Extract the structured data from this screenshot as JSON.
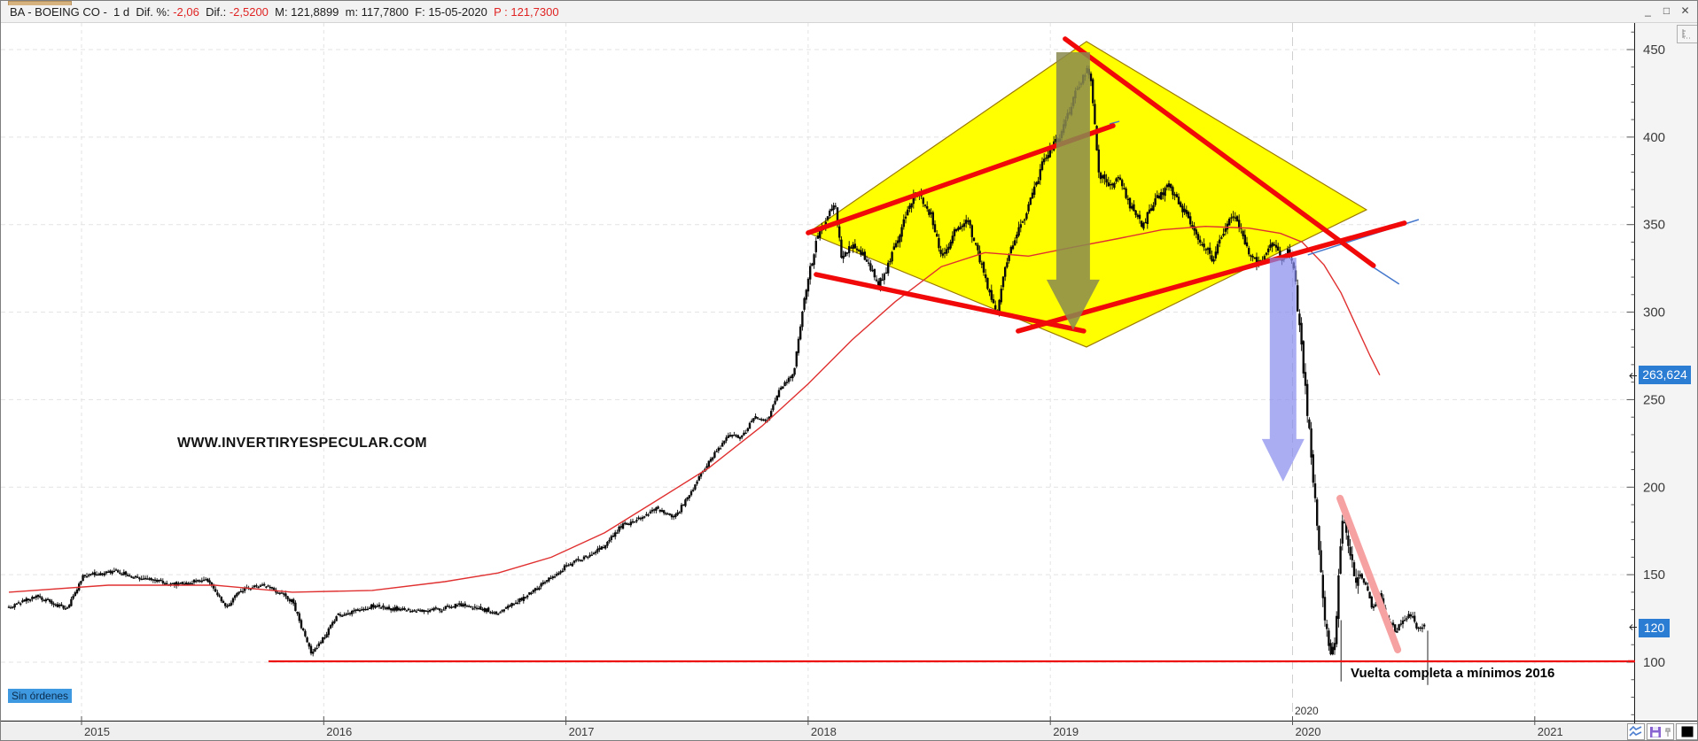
{
  "titlebar": {
    "symbol_info": "BA - BOEING CO -  1 d  Dif. %: ",
    "diff_pct": "-2,06",
    "diff_label": "  Dif.: ",
    "diff_abs": "-2,5200",
    "session_info": "  M: 121,8899  m: 117,7800  F: 15-05-2020  ",
    "last_price_label": "P : 121,7300",
    "minimize": "_",
    "maximize": "□",
    "close": "✕"
  },
  "status": {
    "orders_label": "Sin órdenes"
  },
  "watermark": "WWW.INVERTIRYESPECULAR.COM",
  "annotation_note": "Vuelta completa a mínimos 2016",
  "floating_year_label": "2020",
  "price_axis": {
    "badge_ma": "263,624",
    "badge_last": "120"
  },
  "colors": {
    "badge_blue": "#2b7cd3",
    "trend_red": "#f10808",
    "support_red": "#ee1111",
    "pink": "#f7a2a2",
    "diamond_yellow": "#ffff00",
    "diamond_border": "#9c7a00",
    "ma_red": "#e03030",
    "olive_arrow": "rgba(138,138,80,0.85)",
    "blue_arrow": "rgba(136,138,238,0.7)",
    "thin_blue": "#4477cc",
    "grid": "#e3e3e3",
    "axis_text": "#3b3b3b"
  },
  "chart_data": {
    "type": "candlestick",
    "symbol": "BA - BOEING CO",
    "timeframe": "1 d",
    "last_session": "15-05-2020",
    "y_axis": {
      "side": "right",
      "ticks": [
        100,
        150,
        200,
        250,
        300,
        350,
        400,
        450
      ],
      "minor_step": 10,
      "top_price": 465,
      "bottom_price": 67,
      "ma_marker_value": 263.624,
      "last_price_marker": 120,
      "last_close": 121.73
    },
    "x_axis": {
      "year_ticks": [
        2015,
        2016,
        2017,
        2018,
        2019,
        2020,
        2021
      ],
      "current_year_line": 2020
    },
    "price_path": [
      [
        2014.7,
        131
      ],
      [
        2014.81,
        138
      ],
      [
        2014.94,
        130
      ],
      [
        2015.01,
        150
      ],
      [
        2015.14,
        152
      ],
      [
        2015.25,
        148
      ],
      [
        2015.4,
        144
      ],
      [
        2015.51,
        148
      ],
      [
        2015.6,
        131
      ],
      [
        2015.65,
        141
      ],
      [
        2015.76,
        144
      ],
      [
        2015.87,
        135
      ],
      [
        2015.95,
        104
      ],
      [
        2016.06,
        127
      ],
      [
        2016.2,
        132
      ],
      [
        2016.31,
        130
      ],
      [
        2016.42,
        129
      ],
      [
        2016.57,
        133
      ],
      [
        2016.72,
        128
      ],
      [
        2016.86,
        140
      ],
      [
        2017.0,
        155
      ],
      [
        2017.08,
        160
      ],
      [
        2017.16,
        167
      ],
      [
        2017.23,
        178
      ],
      [
        2017.3,
        182
      ],
      [
        2017.37,
        188
      ],
      [
        2017.45,
        183
      ],
      [
        2017.52,
        198
      ],
      [
        2017.59,
        215
      ],
      [
        2017.67,
        230
      ],
      [
        2017.72,
        228
      ],
      [
        2017.78,
        240
      ],
      [
        2017.83,
        238
      ],
      [
        2017.89,
        258
      ],
      [
        2017.94,
        265
      ],
      [
        2017.97,
        295
      ],
      [
        2018.0,
        320
      ],
      [
        2018.03,
        338
      ],
      [
        2018.07,
        352
      ],
      [
        2018.11,
        362
      ],
      [
        2018.14,
        330
      ],
      [
        2018.18,
        340
      ],
      [
        2018.24,
        330
      ],
      [
        2018.29,
        315
      ],
      [
        2018.34,
        330
      ],
      [
        2018.4,
        355
      ],
      [
        2018.45,
        370
      ],
      [
        2018.51,
        355
      ],
      [
        2018.55,
        330
      ],
      [
        2018.6,
        345
      ],
      [
        2018.66,
        352
      ],
      [
        2018.71,
        330
      ],
      [
        2018.75,
        310
      ],
      [
        2018.78,
        298
      ],
      [
        2018.82,
        330
      ],
      [
        2018.88,
        350
      ],
      [
        2018.93,
        368
      ],
      [
        2018.98,
        390
      ],
      [
        2019.04,
        400
      ],
      [
        2019.09,
        420
      ],
      [
        2019.15,
        440
      ],
      [
        2019.17,
        430
      ],
      [
        2019.2,
        380
      ],
      [
        2019.24,
        370
      ],
      [
        2019.28,
        378
      ],
      [
        2019.33,
        360
      ],
      [
        2019.38,
        350
      ],
      [
        2019.44,
        365
      ],
      [
        2019.49,
        372
      ],
      [
        2019.55,
        358
      ],
      [
        2019.6,
        345
      ],
      [
        2019.64,
        338
      ],
      [
        2019.67,
        330
      ],
      [
        2019.71,
        345
      ],
      [
        2019.75,
        355
      ],
      [
        2019.78,
        350
      ],
      [
        2019.83,
        330
      ],
      [
        2019.87,
        328
      ],
      [
        2019.92,
        340
      ],
      [
        2019.96,
        330
      ],
      [
        2019.98,
        338
      ],
      [
        2020.01,
        320
      ],
      [
        2020.04,
        275
      ],
      [
        2020.07,
        230
      ],
      [
        2020.1,
        180
      ],
      [
        2020.13,
        130
      ],
      [
        2020.16,
        100
      ],
      [
        2020.18,
        120
      ],
      [
        2020.19,
        150
      ],
      [
        2020.21,
        185
      ],
      [
        2020.24,
        160
      ],
      [
        2020.26,
        145
      ],
      [
        2020.28,
        152
      ],
      [
        2020.31,
        140
      ],
      [
        2020.33,
        130
      ],
      [
        2020.36,
        138
      ],
      [
        2020.38,
        128
      ],
      [
        2020.4,
        122
      ],
      [
        2020.43,
        118
      ],
      [
        2020.46,
        125
      ],
      [
        2020.48,
        128
      ],
      [
        2020.51,
        121
      ],
      [
        2020.545,
        121
      ]
    ],
    "ma_path": [
      [
        2014.7,
        140
      ],
      [
        2015.11,
        144
      ],
      [
        2015.55,
        144
      ],
      [
        2015.87,
        140
      ],
      [
        2016.2,
        141
      ],
      [
        2016.5,
        146
      ],
      [
        2016.72,
        151
      ],
      [
        2016.94,
        160
      ],
      [
        2017.16,
        174
      ],
      [
        2017.37,
        192
      ],
      [
        2017.59,
        211
      ],
      [
        2017.81,
        235
      ],
      [
        2018.0,
        259
      ],
      [
        2018.18,
        284
      ],
      [
        2018.36,
        306
      ],
      [
        2018.55,
        326
      ],
      [
        2018.73,
        334
      ],
      [
        2018.91,
        332
      ],
      [
        2019.09,
        337
      ],
      [
        2019.28,
        342
      ],
      [
        2019.46,
        347
      ],
      [
        2019.64,
        349
      ],
      [
        2019.82,
        348
      ],
      [
        2019.95,
        345
      ],
      [
        2020.04,
        340
      ],
      [
        2020.13,
        327
      ],
      [
        2020.2,
        311
      ],
      [
        2020.27,
        290
      ],
      [
        2020.32,
        275
      ],
      [
        2020.36,
        264
      ]
    ],
    "special_lows": [
      {
        "year": 2020.2,
        "from": 124,
        "to": 89
      },
      {
        "year": 2020.558,
        "from": 118,
        "to": 87
      }
    ],
    "annotations": {
      "diamond": {
        "points": [
          [
            2019.149,
            454.6
          ],
          [
            2020.305,
            358.5
          ],
          [
            2019.149,
            280.1
          ],
          [
            2018.0,
            345.3
          ]
        ]
      },
      "red_lines": [
        [
          [
            2018.0,
            345.3
          ],
          [
            2019.259,
            406.5
          ]
        ],
        [
          [
            2019.061,
            456.1
          ],
          [
            2020.334,
            326.6
          ]
        ],
        [
          [
            2018.033,
            321.5
          ],
          [
            2019.138,
            289.2
          ]
        ],
        [
          [
            2018.867,
            289.2
          ],
          [
            2020.462,
            350.9
          ]
        ]
      ],
      "support_line": {
        "price": 100.5,
        "from_year": 2015.772,
        "to_year": 2021.41
      },
      "pink_line": [
        [
          2020.196,
          193.6
        ],
        [
          2020.434,
          107.1
        ]
      ],
      "blue_segments": [
        [
          [
            2019.245,
            407.5
          ],
          [
            2019.285,
            409.0
          ]
        ],
        [
          [
            2020.334,
            325.6
          ],
          [
            2020.44,
            316.0
          ]
        ],
        [
          [
            2020.063,
            332.7
          ],
          [
            2020.521,
            352.9
          ]
        ]
      ],
      "arrows": [
        {
          "name": "gray-down-arrow",
          "year": 2019.094,
          "from_price": 448.5,
          "to_price": 289.7,
          "color": "rgba(138,138,80,0.85)",
          "shaft_w": 38,
          "head_w": 60,
          "head_len": 57
        },
        {
          "name": "blue-down-arrow",
          "year": 2019.961,
          "from_price": 331.1,
          "to_price": 203.2,
          "color": "rgba(136,138,238,0.7)",
          "shaft_w": 30,
          "head_w": 48,
          "head_len": 48
        }
      ]
    }
  }
}
